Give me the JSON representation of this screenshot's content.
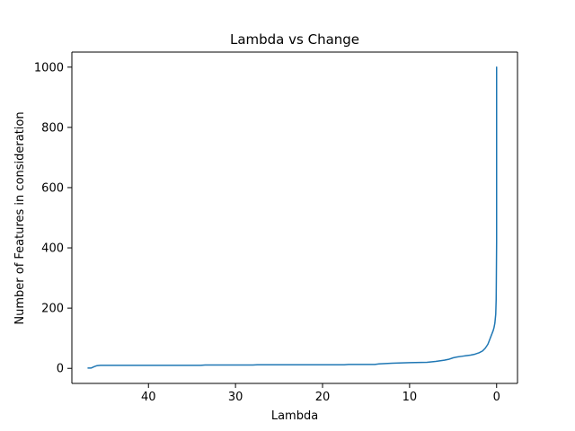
{
  "chart_data": {
    "type": "line",
    "title": "Lambda vs Change",
    "xlabel": "Lambda",
    "ylabel": "Number of Features in consideration",
    "xlim": [
      48.8,
      -2.4
    ],
    "ylim": [
      -50,
      1050
    ],
    "x_inverted": true,
    "grid": false,
    "legend": "none",
    "xticks": [
      40,
      30,
      20,
      10,
      0
    ],
    "yticks": [
      0,
      200,
      400,
      600,
      800,
      1000
    ],
    "series": [
      {
        "color": "#1f77b4",
        "x": [
          47.0,
          46.6,
          46.2,
          45.9,
          45.5,
          44.0,
          40.0,
          36.0,
          34.0,
          33.5,
          30.0,
          28.0,
          27.5,
          24.0,
          20.0,
          17.5,
          17.0,
          14.0,
          13.5,
          12.0,
          10.0,
          8.0,
          7.0,
          6.0,
          5.5,
          5.0,
          4.5,
          4.0,
          3.5,
          3.0,
          2.5,
          2.0,
          1.6,
          1.3,
          1.0,
          0.8,
          0.6,
          0.4,
          0.3,
          0.2,
          0.15,
          0.1,
          0.08,
          0.05,
          0.03,
          0.0,
          0.0,
          0.0
        ],
        "y": [
          1,
          1,
          6,
          9,
          10,
          10,
          10,
          10,
          10,
          11,
          11,
          11,
          12,
          12,
          12,
          12,
          13,
          13,
          15,
          17,
          19,
          20,
          23,
          27,
          30,
          35,
          38,
          40,
          42,
          44,
          47,
          52,
          58,
          67,
          80,
          95,
          110,
          125,
          135,
          150,
          165,
          180,
          200,
          230,
          300,
          420,
          1000,
          425
        ]
      }
    ]
  }
}
